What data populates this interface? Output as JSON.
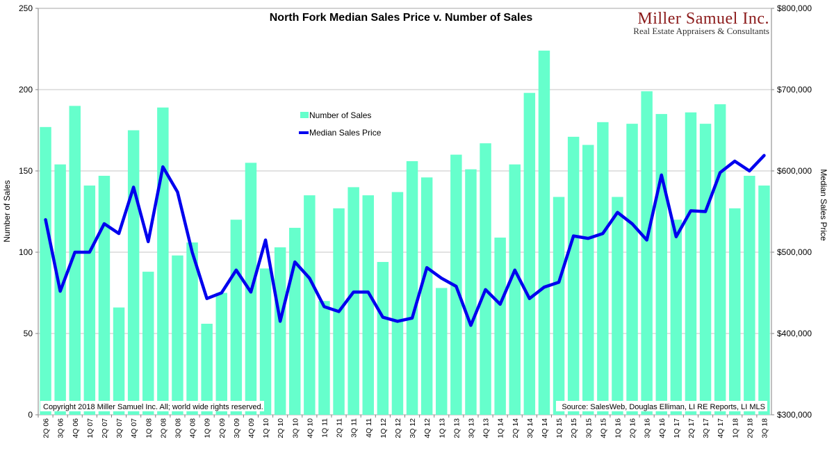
{
  "chart_data": {
    "type": "bar+line",
    "title": "North Fork Median Sales Price v. Number of Sales",
    "categories": [
      "2Q 06",
      "3Q 06",
      "4Q 06",
      "1Q 07",
      "2Q 07",
      "3Q 07",
      "4Q 07",
      "1Q 08",
      "2Q 08",
      "3Q 08",
      "4Q 08",
      "1Q 09",
      "2Q 09",
      "3Q 09",
      "4Q 09",
      "1Q 10",
      "2Q 10",
      "3Q 10",
      "4Q 10",
      "1Q 11",
      "2Q 11",
      "3Q 11",
      "4Q 11",
      "1Q 12",
      "2Q 12",
      "3Q 12",
      "4Q 12",
      "1Q 13",
      "2Q 13",
      "3Q 13",
      "4Q 13",
      "1Q 14",
      "2Q 14",
      "3Q 14",
      "4Q 14",
      "1Q 15",
      "2Q 15",
      "3Q 15",
      "4Q 15",
      "1Q 16",
      "2Q 16",
      "3Q 16",
      "4Q 16",
      "1Q 17",
      "2Q 17",
      "3Q 17",
      "4Q 17",
      "1Q 18",
      "2Q 18",
      "3Q 18"
    ],
    "series": [
      {
        "name": "Number of Sales",
        "type": "bar",
        "axis": "left",
        "color": "#66ffcc",
        "values": [
          177,
          154,
          190,
          141,
          147,
          66,
          175,
          88,
          189,
          98,
          106,
          56,
          75,
          120,
          155,
          90,
          103,
          115,
          135,
          70,
          127,
          140,
          135,
          94,
          137,
          156,
          146,
          78,
          160,
          151,
          167,
          109,
          154,
          198,
          224,
          134,
          171,
          166,
          180,
          134,
          179,
          199,
          185,
          120,
          186,
          179,
          191,
          127,
          147,
          141
        ]
      },
      {
        "name": "Median Sales Price",
        "type": "line",
        "axis": "right",
        "color": "#0000ee",
        "values": [
          540000,
          452000,
          500000,
          500000,
          535000,
          523000,
          580000,
          513000,
          605000,
          574000,
          500000,
          443000,
          450000,
          478000,
          451000,
          515000,
          415000,
          488000,
          468000,
          433000,
          427000,
          451000,
          451000,
          420000,
          415000,
          419000,
          481000,
          468000,
          458000,
          410000,
          454000,
          436000,
          478000,
          443000,
          457000,
          463000,
          520000,
          517000,
          523000,
          549000,
          535000,
          515000,
          595000,
          519000,
          551000,
          550000,
          598000,
          612000,
          600000,
          619000
        ]
      }
    ],
    "y_left": {
      "label": "Number of Sales",
      "range": [
        0,
        250
      ],
      "ticks": [
        0,
        50,
        100,
        150,
        200,
        250
      ],
      "tick_labels": [
        "0",
        "50",
        "100",
        "150",
        "200",
        "250"
      ]
    },
    "y_right": {
      "label": "Median Sales Price",
      "range": [
        300000,
        800000
      ],
      "ticks": [
        300000,
        400000,
        500000,
        600000,
        700000,
        800000
      ],
      "tick_labels": [
        "$300,000",
        "$400,000",
        "$500,000",
        "$600,000",
        "$700,000",
        "$800,000"
      ]
    },
    "grid": true,
    "legend_position": "top-left-center",
    "logo": {
      "name": "Miller Samuel Inc.",
      "tagline": "Real Estate Appraisers & Consultants"
    },
    "copyright": "Copyright 2018 Miller Samuel Inc.  All; world wide rights reserved.",
    "source": "Source: SalesWeb, Douglas Elliman, LI RE Reports, LI MLS"
  }
}
